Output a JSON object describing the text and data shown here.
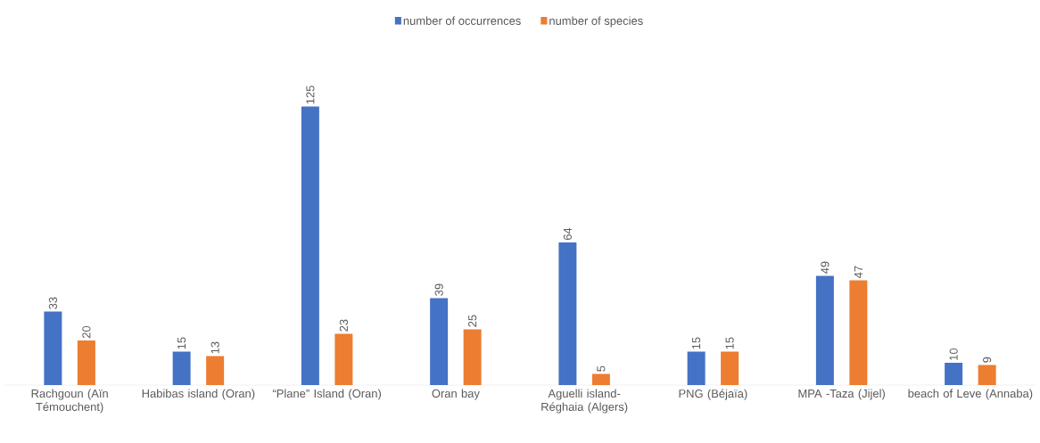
{
  "chart_data": {
    "type": "bar",
    "categories": [
      "Rachgoun (Aïn Témouchent)",
      "Habibas island (Oran)",
      "“Plane” Island (Oran)",
      "Oran bay",
      "Aguelli island-Réghaia (Algers)",
      "PNG (Béjaïa)",
      "MPA -Taza (Jijel)",
      "beach of Leve (Annaba)"
    ],
    "series": [
      {
        "name": "number of occurrences",
        "color": "#4472c4",
        "values": [
          33,
          15,
          125,
          39,
          64,
          15,
          49,
          10
        ]
      },
      {
        "name": "number of species",
        "color": "#ed7d31",
        "values": [
          20,
          13,
          23,
          25,
          5,
          15,
          47,
          9
        ]
      }
    ],
    "data_labels": true,
    "legend": "top"
  }
}
